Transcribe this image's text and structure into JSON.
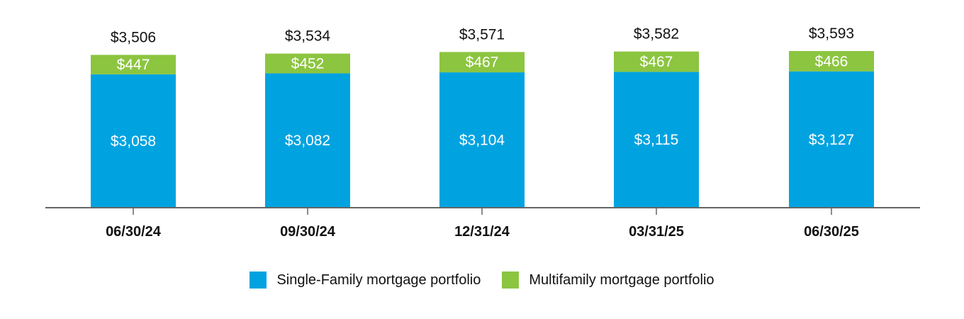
{
  "chart_data": {
    "type": "bar",
    "stacked": true,
    "categories": [
      "06/30/24",
      "09/30/24",
      "12/31/24",
      "03/31/25",
      "06/30/25"
    ],
    "series": [
      {
        "name": "Single-Family mortgage portfolio",
        "color": "#00a3e0",
        "values": [
          3058,
          3082,
          3104,
          3115,
          3127
        ],
        "labels": [
          "$3,058",
          "$3,082",
          "$3,104",
          "$3,115",
          "$3,127"
        ]
      },
      {
        "name": "Multifamily mortgage portfolio",
        "color": "#8cc540",
        "values": [
          447,
          452,
          467,
          467,
          466
        ],
        "labels": [
          "$447",
          "$452",
          "$467",
          "$467",
          "$466"
        ]
      }
    ],
    "totals": [
      3506,
      3534,
      3571,
      3582,
      3593
    ],
    "total_labels": [
      "$3,506",
      "$3,534",
      "$3,571",
      "$3,582",
      "$3,593"
    ],
    "ylim": [
      0,
      3593
    ],
    "title": "",
    "xlabel": "",
    "ylabel": "",
    "grid": false,
    "legend_position": "bottom"
  }
}
